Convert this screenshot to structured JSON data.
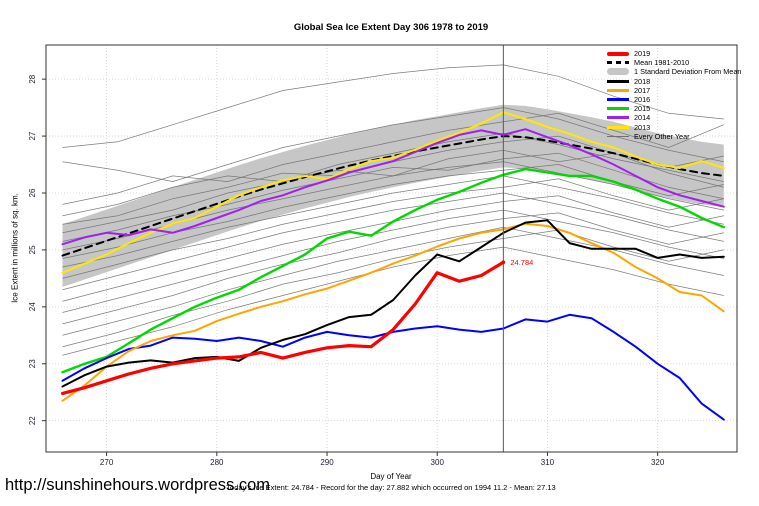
{
  "title": "Global Sea Ice Extent Day 306 1978 to 2019",
  "site_url": "http://sunshinehours.wordpress.com",
  "footnote": "Today's Ice Extent: 24.784  - Record for the day: 27.882 which occurred on 1994 11.2  - Mean: 27.13",
  "annotation": {
    "text": "24.784",
    "day": 306,
    "value": 24.784,
    "color": "#ff0000"
  },
  "chart_data": {
    "type": "line",
    "title": "Global Sea Ice Extent Day 306 1978 to 2019",
    "xlabel": "Day of Year",
    "ylabel": "Ice Extent in millions of sq. km.",
    "xlim": [
      264.5,
      327.2
    ],
    "ylim": [
      21.45,
      28.6
    ],
    "xticks": [
      270,
      280,
      290,
      300,
      310,
      320
    ],
    "yticks": [
      22,
      23,
      24,
      25,
      26,
      27,
      28
    ],
    "grid": "dotted",
    "vline_day": 306,
    "legend_position": "top-right",
    "days": [
      266,
      268,
      270,
      272,
      274,
      276,
      278,
      280,
      282,
      284,
      286,
      288,
      290,
      292,
      294,
      296,
      298,
      300,
      302,
      304,
      306,
      308,
      310,
      312,
      314,
      316,
      318,
      320,
      322,
      324,
      326
    ],
    "series": [
      {
        "name": "2019",
        "color": "#ff0000",
        "width": 3.2,
        "dash": null,
        "values": [
          22.48,
          22.58,
          22.7,
          22.82,
          22.92,
          23.0,
          23.05,
          23.1,
          23.12,
          23.2,
          23.1,
          23.2,
          23.28,
          23.32,
          23.3,
          23.6,
          24.05,
          24.6,
          24.45,
          24.55,
          24.784,
          null,
          null,
          null,
          null,
          null,
          null,
          null,
          null,
          null,
          null
        ]
      },
      {
        "name": "Mean 1981-2010",
        "color": "#000000",
        "width": 2.0,
        "dash": "7,5",
        "values": [
          24.9,
          25.03,
          25.16,
          25.29,
          25.42,
          25.55,
          25.68,
          25.81,
          25.94,
          26.06,
          26.17,
          26.28,
          26.38,
          26.48,
          26.57,
          26.65,
          26.73,
          26.8,
          26.87,
          26.94,
          27.0,
          26.98,
          26.92,
          26.85,
          26.78,
          26.7,
          26.6,
          26.5,
          26.42,
          26.35,
          26.3
        ]
      },
      {
        "name": "2018",
        "color": "#000000",
        "width": 2.0,
        "dash": null,
        "values": [
          22.6,
          22.8,
          22.95,
          23.02,
          23.06,
          23.02,
          23.1,
          23.12,
          23.05,
          23.28,
          23.42,
          23.52,
          23.68,
          23.82,
          23.86,
          24.12,
          24.55,
          24.92,
          24.8,
          25.05,
          25.3,
          25.48,
          25.52,
          25.12,
          25.02,
          25.02,
          25.02,
          24.86,
          24.92,
          24.86,
          24.88
        ]
      },
      {
        "name": "2017",
        "color": "#ffa500",
        "width": 2.0,
        "dash": null,
        "values": [
          22.35,
          22.62,
          22.95,
          23.22,
          23.4,
          23.5,
          23.58,
          23.75,
          23.88,
          24.0,
          24.1,
          24.22,
          24.32,
          24.46,
          24.6,
          24.76,
          24.9,
          25.06,
          25.2,
          25.3,
          25.36,
          25.46,
          25.42,
          25.3,
          25.12,
          24.95,
          24.7,
          24.5,
          24.26,
          24.2,
          23.92
        ]
      },
      {
        "name": "2016",
        "color": "#0000ff",
        "width": 2.0,
        "dash": null,
        "values": [
          22.7,
          22.92,
          23.1,
          23.26,
          23.32,
          23.46,
          23.44,
          23.4,
          23.46,
          23.4,
          23.3,
          23.46,
          23.56,
          23.5,
          23.46,
          23.56,
          23.62,
          23.66,
          23.6,
          23.56,
          23.62,
          23.78,
          23.74,
          23.86,
          23.8,
          23.56,
          23.3,
          23.0,
          22.75,
          22.3,
          22.02
        ]
      },
      {
        "name": "2015",
        "color": "#00d800",
        "width": 2.4,
        "dash": null,
        "values": [
          22.85,
          23.0,
          23.12,
          23.36,
          23.6,
          23.8,
          24.0,
          24.16,
          24.3,
          24.52,
          24.72,
          24.92,
          25.2,
          25.32,
          25.25,
          25.5,
          25.7,
          25.88,
          26.02,
          26.18,
          26.32,
          26.42,
          26.36,
          26.3,
          26.3,
          26.2,
          26.06,
          25.9,
          25.76,
          25.56,
          25.4
        ]
      },
      {
        "name": "2014",
        "color": "#a020f0",
        "width": 2.0,
        "dash": null,
        "values": [
          25.1,
          25.22,
          25.3,
          25.26,
          25.36,
          25.3,
          25.42,
          25.56,
          25.7,
          25.86,
          25.96,
          26.1,
          26.22,
          26.36,
          26.46,
          26.56,
          26.72,
          26.88,
          27.02,
          27.1,
          27.02,
          27.12,
          26.98,
          26.84,
          26.68,
          26.5,
          26.3,
          26.1,
          25.96,
          25.86,
          25.76
        ]
      },
      {
        "name": "2013",
        "color": "#ffe800",
        "width": 2.0,
        "dash": null,
        "values": [
          24.6,
          24.76,
          24.92,
          25.12,
          25.3,
          25.46,
          25.56,
          25.76,
          25.96,
          26.1,
          26.22,
          26.3,
          26.24,
          26.42,
          26.56,
          26.62,
          26.76,
          26.92,
          27.06,
          27.22,
          27.42,
          27.3,
          27.16,
          27.04,
          26.9,
          26.8,
          26.64,
          26.5,
          26.44,
          26.56,
          26.44
        ]
      }
    ],
    "band": {
      "label": "1 Standard Deviation From Mean",
      "color": "#c6c6c6",
      "halfwidth": 0.55,
      "around": "Mean 1981-2010"
    },
    "gray_years": {
      "label": "Every Other Year",
      "color": "#707070",
      "days": [
        266,
        271,
        276,
        281,
        286,
        291,
        296,
        301,
        306,
        311,
        316,
        321,
        326
      ],
      "lines": [
        [
          26.8,
          26.9,
          27.2,
          27.5,
          27.8,
          27.95,
          28.1,
          28.2,
          28.25,
          28.05,
          27.7,
          27.4,
          27.3
        ],
        [
          26.55,
          26.4,
          26.2,
          26.5,
          26.8,
          27.0,
          27.2,
          27.35,
          27.5,
          27.3,
          27.0,
          26.75,
          26.55
        ],
        [
          25.8,
          26.0,
          26.3,
          26.2,
          26.5,
          26.7,
          26.9,
          27.1,
          27.25,
          27.4,
          27.1,
          26.8,
          27.2
        ],
        [
          25.6,
          25.8,
          26.1,
          26.3,
          26.2,
          26.5,
          26.7,
          26.9,
          27.05,
          26.85,
          26.6,
          26.4,
          26.2
        ],
        [
          25.45,
          25.6,
          25.9,
          26.1,
          26.35,
          26.3,
          26.55,
          26.75,
          26.9,
          27.0,
          26.7,
          26.45,
          26.65
        ],
        [
          25.3,
          25.5,
          25.7,
          26.0,
          26.2,
          26.4,
          26.3,
          26.6,
          26.75,
          26.55,
          26.7,
          26.35,
          26.1
        ],
        [
          25.15,
          25.35,
          25.6,
          25.8,
          26.05,
          26.25,
          26.45,
          26.4,
          26.6,
          26.7,
          26.4,
          26.1,
          25.9
        ],
        [
          25.0,
          25.2,
          25.45,
          25.7,
          25.9,
          26.1,
          26.3,
          26.45,
          26.55,
          26.35,
          26.15,
          25.9,
          25.7
        ],
        [
          24.85,
          25.05,
          25.3,
          25.5,
          25.75,
          25.95,
          26.15,
          26.3,
          26.4,
          26.5,
          26.2,
          25.95,
          26.15
        ],
        [
          24.7,
          24.9,
          25.15,
          25.4,
          25.6,
          25.8,
          26.0,
          26.15,
          26.3,
          26.1,
          25.9,
          25.65,
          25.45
        ],
        [
          24.5,
          24.75,
          25.0,
          25.2,
          25.45,
          25.65,
          25.85,
          26.0,
          26.1,
          26.25,
          25.95,
          25.7,
          25.9
        ],
        [
          24.3,
          24.55,
          24.8,
          25.05,
          25.3,
          25.5,
          25.7,
          25.85,
          26.0,
          25.8,
          25.6,
          25.35,
          25.15
        ],
        [
          24.1,
          24.35,
          24.6,
          24.85,
          25.1,
          25.3,
          25.5,
          25.7,
          25.85,
          25.95,
          25.65,
          25.4,
          25.6
        ],
        [
          23.9,
          24.15,
          24.4,
          24.65,
          24.9,
          25.15,
          25.35,
          25.55,
          25.7,
          25.5,
          25.3,
          25.05,
          24.85
        ],
        [
          23.7,
          23.95,
          24.2,
          24.5,
          24.75,
          24.95,
          25.2,
          25.4,
          25.55,
          25.65,
          25.35,
          25.1,
          25.3
        ],
        [
          23.5,
          23.75,
          24.0,
          24.3,
          24.55,
          24.8,
          25.0,
          25.2,
          25.4,
          25.2,
          25.0,
          24.75,
          24.55
        ],
        [
          23.3,
          23.55,
          23.85,
          24.1,
          24.4,
          24.6,
          24.85,
          25.05,
          25.2,
          25.35,
          25.05,
          24.8,
          25.0
        ],
        [
          23.15,
          23.4,
          23.65,
          23.95,
          24.2,
          24.45,
          24.7,
          24.9,
          25.05,
          24.85,
          24.65,
          24.4,
          24.2
        ]
      ]
    },
    "legend": [
      {
        "label": "2019",
        "color": "#ff0000",
        "type": "thick"
      },
      {
        "label": "Mean 1981-2010",
        "color": "#000000",
        "type": "dashed"
      },
      {
        "label": "1 Standard Deviation From Mean",
        "color": "#c6c6c6",
        "type": "band"
      },
      {
        "label": "2018",
        "color": "#000000",
        "type": "line"
      },
      {
        "label": "2017",
        "color": "#ffa500",
        "type": "line"
      },
      {
        "label": "2016",
        "color": "#0000ff",
        "type": "line"
      },
      {
        "label": "2015",
        "color": "#00d800",
        "type": "line"
      },
      {
        "label": "2014",
        "color": "#a020f0",
        "type": "line"
      },
      {
        "label": "2013",
        "color": "#ffe800",
        "type": "line"
      },
      {
        "label": "Every Other Year",
        "color": "#707070",
        "type": "thin"
      }
    ]
  }
}
